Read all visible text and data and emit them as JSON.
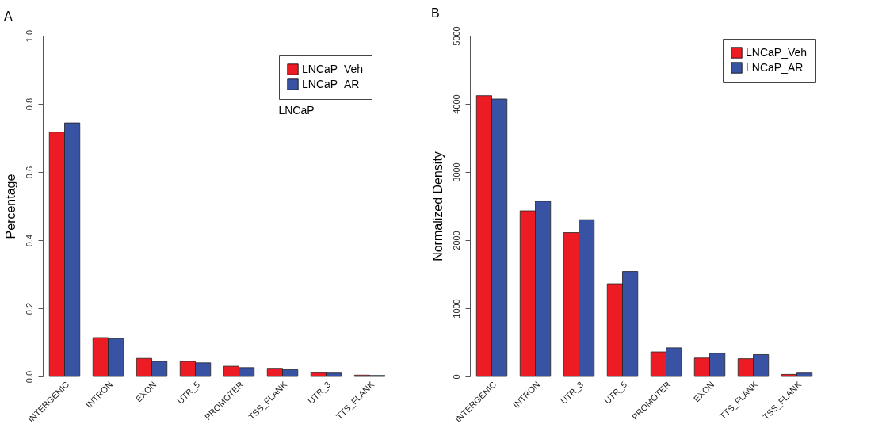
{
  "chart_data": [
    {
      "type": "bar",
      "title": "A",
      "ylabel": "Percentage",
      "categories": [
        "INTERGENIC",
        "INTRON",
        "EXON",
        "UTR_5",
        "PROMOTER",
        "TSS_FLANK",
        "UTR_3",
        "TTS_FLANK"
      ],
      "series": [
        {
          "name": "LNCaP_Veh",
          "color": "#ed1c24",
          "values": [
            0.717,
            0.114,
            0.053,
            0.044,
            0.03,
            0.024,
            0.011,
            0.004
          ]
        },
        {
          "name": "LNCaP_AR",
          "color": "#3953a4",
          "values": [
            0.744,
            0.111,
            0.044,
            0.04,
            0.026,
            0.02,
            0.01,
            0.003
          ]
        }
      ],
      "ylim": [
        0,
        1
      ],
      "yticks": [
        {
          "value": 0,
          "label": "0.0"
        },
        0.2,
        0.4,
        0.6,
        0.8,
        {
          "value": 1,
          "label": "1.0"
        }
      ],
      "grid": false,
      "legend": "top right",
      "annotations": [
        "LNCaP"
      ]
    },
    {
      "type": "bar",
      "title": "B",
      "ylabel": "Normalized Density",
      "categories": [
        "INTERGENIC",
        "INTRON",
        "UTR_3",
        "UTR_5",
        "PROMOTER",
        "EXON",
        "TTS_FLANK",
        "TSS_FLANK"
      ],
      "series": [
        {
          "name": "LNCaP_Veh",
          "color": "#ed1c24",
          "values": [
            4120,
            2430,
            2110,
            1360,
            360,
            270,
            260,
            30
          ]
        },
        {
          "name": "LNCaP_AR",
          "color": "#3953a4",
          "values": [
            4070,
            2570,
            2300,
            1540,
            420,
            340,
            320,
            50
          ]
        }
      ],
      "ylim": [
        0,
        5000
      ],
      "yticks": [
        0,
        {
          "value": 1000,
          "label": "1000"
        },
        {
          "value": 2000,
          "label": "2000"
        },
        {
          "value": 3000,
          "label": "3000"
        },
        {
          "value": 4000,
          "label": "4000"
        },
        {
          "value": 5000,
          "label": "5000"
        }
      ],
      "grid": false,
      "legend": "top right"
    }
  ]
}
